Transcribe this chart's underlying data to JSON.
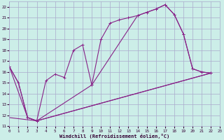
{
  "xlabel": "Windchill (Refroidissement éolien,°C)",
  "bg_color": "#cceee8",
  "grid_color": "#aaaacc",
  "line_color": "#882288",
  "xlim": [
    0,
    23
  ],
  "ylim": [
    11,
    22.5
  ],
  "yticks": [
    11,
    12,
    13,
    14,
    15,
    16,
    17,
    18,
    19,
    20,
    21,
    22
  ],
  "xticks": [
    0,
    1,
    2,
    3,
    4,
    5,
    6,
    7,
    8,
    9,
    10,
    11,
    12,
    13,
    14,
    15,
    16,
    17,
    18,
    19,
    20,
    21,
    22,
    23
  ],
  "curve1_x": [
    0,
    1,
    2,
    3,
    4,
    5,
    6,
    7,
    8,
    9,
    10,
    11,
    12,
    13,
    14,
    15,
    16,
    17,
    18,
    19,
    20,
    21,
    22
  ],
  "curve1_y": [
    16.5,
    15.0,
    11.8,
    11.5,
    15.2,
    15.8,
    15.5,
    18.0,
    18.5,
    14.8,
    19.0,
    20.5,
    20.8,
    21.0,
    21.2,
    21.5,
    21.8,
    22.2,
    21.3,
    19.5,
    16.3,
    16.0,
    15.9
  ],
  "curve2_x": [
    0,
    2,
    3,
    9,
    14,
    15,
    16,
    17,
    18,
    19,
    20,
    21,
    22
  ],
  "curve2_y": [
    16.5,
    11.8,
    11.5,
    14.8,
    21.2,
    21.5,
    21.8,
    22.2,
    21.3,
    19.5,
    16.3,
    16.0,
    15.9
  ],
  "curve3_x": [
    0,
    1,
    2,
    3,
    22
  ],
  "curve3_y": [
    16.5,
    15.0,
    11.8,
    11.5,
    15.9
  ],
  "curve4_x": [
    0,
    3,
    22
  ],
  "curve4_y": [
    11.8,
    11.5,
    15.9
  ]
}
